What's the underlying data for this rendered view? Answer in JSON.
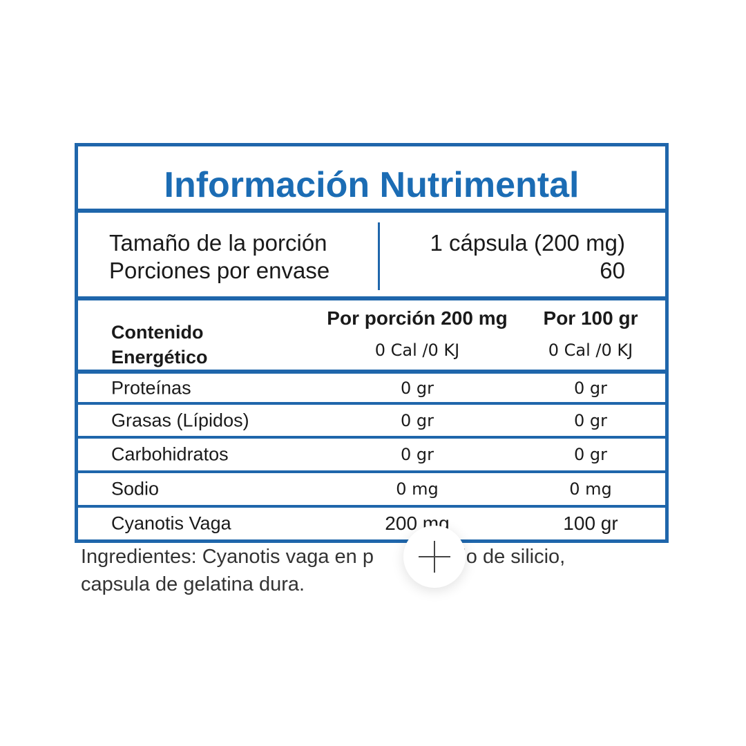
{
  "title": "Información Nutrimental",
  "serving": {
    "size_label": "Tamaño de la porción",
    "size_value": "1 cápsula (200 mg)",
    "servings_label": "Porciones por envase",
    "servings_value": "60"
  },
  "header": {
    "energy_label_1": "Contenido",
    "energy_label_2": "Energético",
    "col_per_serving": "Por porción 200 mg",
    "col_per_100": "Por 100 gr",
    "energy_per_serving": "0 Cal /0 KJ",
    "energy_per_100": "0 Cal /0 KJ"
  },
  "rows": [
    {
      "name": "Proteínas",
      "per_serving": "0 gr",
      "per_100": "0 gr"
    },
    {
      "name": "Grasas (Lípidos)",
      "per_serving": "0 gr",
      "per_100": "0 gr"
    },
    {
      "name": "Carbohidratos",
      "per_serving": "0 gr",
      "per_100": "0 gr"
    },
    {
      "name": "Sodio",
      "per_serving": "0 mg",
      "per_100": "0 mg"
    },
    {
      "name": "Cyanotis Vaga",
      "per_serving": "200 mg",
      "per_100": "100 gr"
    }
  ],
  "ingredients": {
    "line1_a": "Ingredientes: Cyanotis vaga en p",
    "line1_b": "dióxido de silicio,",
    "line2": "capsula de gelatina dura."
  },
  "zoom_button": {
    "icon": "plus-icon"
  },
  "colors": {
    "border": "#1f66ab",
    "title": "#1b6cb4"
  }
}
